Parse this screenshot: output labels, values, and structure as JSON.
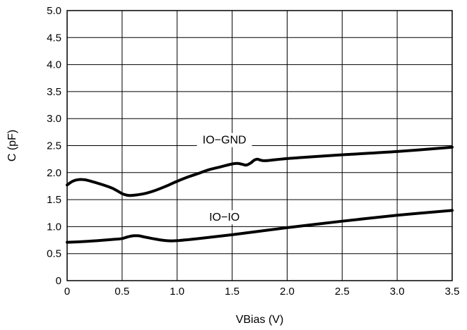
{
  "chart_data": {
    "type": "line",
    "title": "",
    "xlabel": "VBias (V)",
    "ylabel": "C (pF)",
    "xlim": [
      0,
      3.5
    ],
    "ylim": [
      0,
      5.0
    ],
    "grid": true,
    "xticks": [
      "0",
      "0.5",
      "1.0",
      "1.5",
      "2.0",
      "2.5",
      "3.0",
      "3.5"
    ],
    "yticks": [
      "0",
      "0.5",
      "1.0",
      "1.5",
      "2.0",
      "2.5",
      "3.0",
      "3.5",
      "4.0",
      "4.5",
      "5.0"
    ],
    "series": [
      {
        "name": "IO−GND",
        "x": [
          0,
          0.05,
          0.1,
          0.15,
          0.2,
          0.3,
          0.4,
          0.45,
          0.5,
          0.55,
          0.6,
          0.7,
          0.8,
          0.9,
          1.0,
          1.1,
          1.2,
          1.3,
          1.4,
          1.5,
          1.55,
          1.6,
          1.63,
          1.67,
          1.7,
          1.73,
          1.76,
          1.8,
          1.9,
          2.0,
          2.2,
          2.5,
          3.0,
          3.5
        ],
        "y": [
          1.77,
          1.84,
          1.87,
          1.87,
          1.85,
          1.79,
          1.72,
          1.67,
          1.61,
          1.58,
          1.58,
          1.61,
          1.67,
          1.75,
          1.84,
          1.92,
          1.99,
          2.06,
          2.11,
          2.16,
          2.17,
          2.15,
          2.14,
          2.18,
          2.23,
          2.25,
          2.23,
          2.22,
          2.24,
          2.26,
          2.29,
          2.33,
          2.39,
          2.47
        ]
      },
      {
        "name": "IO−IO",
        "x": [
          0,
          0.2,
          0.4,
          0.5,
          0.55,
          0.6,
          0.65,
          0.7,
          0.8,
          0.9,
          1.0,
          1.2,
          1.5,
          2.0,
          2.5,
          3.0,
          3.5
        ],
        "y": [
          0.71,
          0.73,
          0.76,
          0.78,
          0.81,
          0.83,
          0.83,
          0.81,
          0.77,
          0.74,
          0.74,
          0.78,
          0.85,
          0.98,
          1.1,
          1.21,
          1.3
        ]
      }
    ]
  }
}
